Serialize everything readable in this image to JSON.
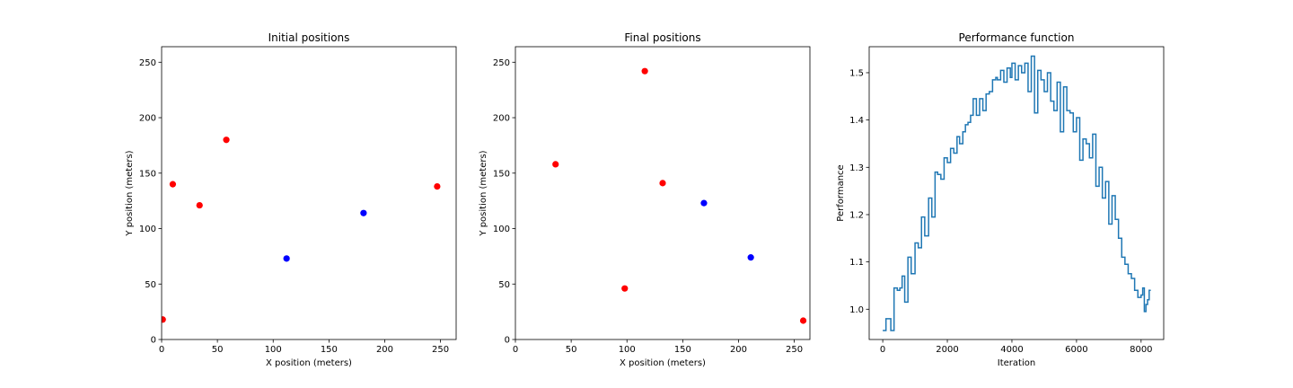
{
  "chart_data": [
    {
      "type": "scatter",
      "title": "Initial positions",
      "xlabel": "X position (meters)",
      "ylabel": "Y position (meters)",
      "xlim": [
        0,
        264
      ],
      "ylim": [
        0,
        264
      ],
      "xticks": [
        0,
        50,
        100,
        150,
        200,
        250
      ],
      "yticks": [
        0,
        50,
        100,
        150,
        200,
        250
      ],
      "series": [
        {
          "color": "#ff0000",
          "points": [
            [
              1,
              18
            ],
            [
              10,
              140
            ],
            [
              34,
              121
            ],
            [
              58,
              180
            ],
            [
              247,
              138
            ]
          ]
        },
        {
          "color": "#0000ff",
          "points": [
            [
              112,
              73
            ],
            [
              181,
              114
            ]
          ]
        }
      ]
    },
    {
      "type": "scatter",
      "title": "Final positions",
      "xlabel": "X position (meters)",
      "ylabel": "Y position (meters)",
      "xlim": [
        0,
        264
      ],
      "ylim": [
        0,
        264
      ],
      "xticks": [
        0,
        50,
        100,
        150,
        200,
        250
      ],
      "yticks": [
        0,
        50,
        100,
        150,
        200,
        250
      ],
      "series": [
        {
          "color": "#ff0000",
          "points": [
            [
              36,
              158
            ],
            [
              98,
              46
            ],
            [
              116,
              242
            ],
            [
              132,
              141
            ],
            [
              258,
              17
            ]
          ]
        },
        {
          "color": "#0000ff",
          "points": [
            [
              169,
              123
            ],
            [
              211,
              74
            ]
          ]
        }
      ]
    },
    {
      "type": "line",
      "title": "Performance function",
      "xlabel": "Iteration",
      "ylabel": "Performance",
      "xlim": [
        -420,
        8700
      ],
      "ylim": [
        0.936,
        1.555
      ],
      "xticks": [
        0,
        2000,
        4000,
        6000,
        8000
      ],
      "yticks": [
        1.0,
        1.1,
        1.2,
        1.3,
        1.4,
        1.5
      ],
      "ytick_labels": [
        "1.0",
        "1.1",
        "1.2",
        "1.3",
        "1.4",
        "1.5"
      ],
      "series": [
        {
          "color": "#1f77b4",
          "step": true,
          "x": [
            0,
            100,
            250,
            350,
            450,
            530,
            600,
            680,
            780,
            880,
            1000,
            1100,
            1200,
            1300,
            1420,
            1520,
            1620,
            1700,
            1800,
            1900,
            2000,
            2100,
            2200,
            2300,
            2380,
            2480,
            2560,
            2640,
            2720,
            2800,
            2900,
            3000,
            3100,
            3200,
            3300,
            3400,
            3500,
            3550,
            3650,
            3750,
            3850,
            3950,
            4000,
            4100,
            4200,
            4300,
            4400,
            4500,
            4600,
            4700,
            4800,
            4900,
            5000,
            5100,
            5200,
            5300,
            5400,
            5500,
            5600,
            5700,
            5800,
            5900,
            6000,
            6100,
            6200,
            6300,
            6400,
            6500,
            6600,
            6700,
            6800,
            6900,
            7000,
            7100,
            7200,
            7300,
            7400,
            7500,
            7600,
            7700,
            7800,
            7900,
            8000,
            8050,
            8100,
            8150,
            8200,
            8250,
            8300
          ],
          "values": [
            0.955,
            0.98,
            0.955,
            1.045,
            1.04,
            1.045,
            1.07,
            1.015,
            1.11,
            1.075,
            1.14,
            1.13,
            1.195,
            1.155,
            1.235,
            1.195,
            1.29,
            1.285,
            1.275,
            1.32,
            1.31,
            1.34,
            1.33,
            1.365,
            1.35,
            1.375,
            1.39,
            1.395,
            1.41,
            1.445,
            1.41,
            1.445,
            1.42,
            1.455,
            1.46,
            1.485,
            1.49,
            1.485,
            1.505,
            1.48,
            1.51,
            1.49,
            1.52,
            1.485,
            1.515,
            1.5,
            1.52,
            1.46,
            1.535,
            1.415,
            1.505,
            1.485,
            1.46,
            1.5,
            1.44,
            1.42,
            1.48,
            1.375,
            1.47,
            1.42,
            1.415,
            1.375,
            1.405,
            1.315,
            1.36,
            1.35,
            1.32,
            1.37,
            1.26,
            1.3,
            1.235,
            1.27,
            1.18,
            1.24,
            1.19,
            1.15,
            1.11,
            1.095,
            1.075,
            1.065,
            1.04,
            1.025,
            1.03,
            1.045,
            0.995,
            1.01,
            1.02,
            1.04,
            1.04
          ]
        }
      ]
    }
  ]
}
